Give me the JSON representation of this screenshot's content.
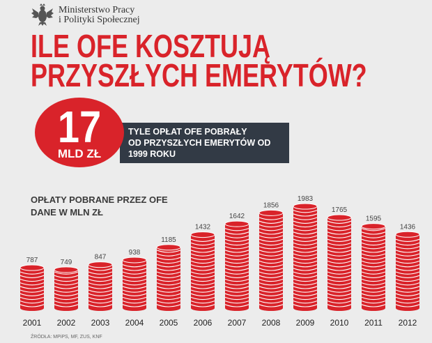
{
  "ministry": {
    "line1": "Ministerstwo Pracy",
    "line2": "i Polityki Społecznej",
    "emblem_icon": "white-eagle-emblem"
  },
  "headline": {
    "line1": "ILE OFE KOSZTUJĄ",
    "line2": "PRZYSZŁYCH EMERYTÓW?"
  },
  "highlight": {
    "number": "17",
    "unit": "MLD ZŁ",
    "text_lines": [
      "TYLE OPŁAT OFE POBRAŁY",
      "OD PRZYSZŁYCH EMERYTÓW OD",
      "1999 ROKU"
    ]
  },
  "colors": {
    "accent": "#d9232a",
    "dark_box": "#323a45",
    "background": "#ececec"
  },
  "chart_data": {
    "type": "bar",
    "title_lines": [
      "OPŁATY POBRANE PRZEZ OFE",
      "DANE W MLN ZŁ"
    ],
    "categories": [
      "2001",
      "2002",
      "2003",
      "2004",
      "2005",
      "2006",
      "2007",
      "2008",
      "2009",
      "2010",
      "2011",
      "2012"
    ],
    "values": [
      787,
      749,
      847,
      938,
      1185,
      1432,
      1642,
      1856,
      1983,
      1765,
      1595,
      1436
    ],
    "ylim": [
      0,
      1983
    ],
    "grid": false,
    "style": "stacked red coins"
  },
  "source": "ŹRÓDŁA: MPiPS, MF, ZUS, KNF"
}
